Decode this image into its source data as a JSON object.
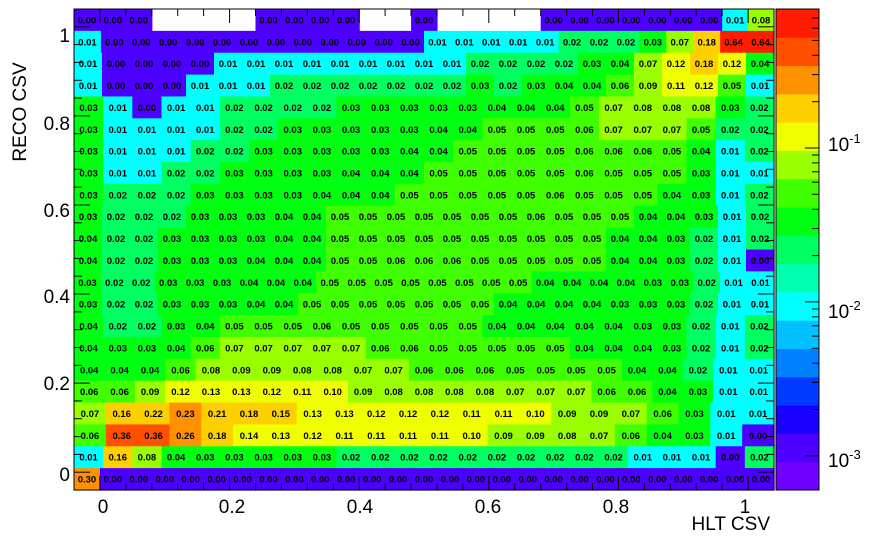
{
  "chart_data": {
    "type": "heatmap",
    "xlabel": "HLT CSV",
    "ylabel": "RECO CSV",
    "xlim": [
      -0.04,
      1.04
    ],
    "ylim": [
      -0.04,
      1.04
    ],
    "x_ticks": [
      "0",
      "0.2",
      "0.4",
      "0.6",
      "0.8",
      "1"
    ],
    "y_ticks": [
      "0",
      "0.2",
      "0.4",
      "0.6",
      "0.8",
      "1"
    ],
    "z_scale": "log",
    "z_range": [
      0.0006,
      0.8
    ],
    "colorbar_ticks": [
      "10^-1",
      "10^-2",
      "10^-3"
    ],
    "x_bin_edges": [
      -0.04,
      0.0,
      0.04,
      0.08,
      0.12,
      0.16,
      0.2,
      0.24,
      0.28,
      0.32,
      0.36,
      0.4,
      0.44,
      0.48,
      0.52,
      0.56,
      0.6,
      0.64,
      0.68,
      0.72,
      0.76,
      0.8,
      0.84,
      0.88,
      0.92,
      0.96,
      1.0,
      1.04
    ],
    "y_bin_edges": [
      -0.04,
      0.0,
      0.04,
      0.08,
      0.12,
      0.16,
      0.2,
      0.24,
      0.28,
      0.32,
      0.36,
      0.4,
      0.44,
      0.48,
      0.52,
      0.56,
      0.6,
      0.64,
      0.68,
      0.72,
      0.76,
      0.8,
      0.84,
      0.88,
      0.92,
      0.96,
      1.0,
      1.04
    ],
    "rows_top_to_bottom": [
      [
        "0.00",
        "0.00",
        "0.00",
        "",
        "",
        "",
        "",
        "0.00",
        "0.00",
        "0.00",
        "0.00",
        "",
        "",
        "0.00",
        "",
        "",
        "",
        "",
        "0.00",
        "0.00",
        "0.00",
        "0.00",
        "0.00",
        "0.00",
        "0.00",
        "0.01",
        "0.08"
      ],
      [
        "0.01",
        "0.00",
        "0.00",
        "0.00",
        "0.00",
        "0.00",
        "0.00",
        "0.00",
        "0.00",
        "0.00",
        "0.00",
        "0.00",
        "0.00",
        "0.01",
        "0.01",
        "0.01",
        "0.01",
        "0.01",
        "0.02",
        "0.02",
        "0.02",
        "0.03",
        "0.07",
        "0.18",
        "0.64",
        "0.64"
      ],
      [
        "0.01",
        "0.00",
        "0.00",
        "0.00",
        "0.00",
        "0.01",
        "0.01",
        "0.01",
        "0.01",
        "0.01",
        "0.01",
        "0.01",
        "0.01",
        "0.01",
        "0.02",
        "0.02",
        "0.02",
        "0.02",
        "0.03",
        "0.04",
        "0.07",
        "0.12",
        "0.18",
        "0.12",
        "0.04"
      ],
      [
        "0.01",
        "0.00",
        "0.00",
        "0.00",
        "0.01",
        "0.01",
        "0.01",
        "0.02",
        "0.02",
        "0.02",
        "0.02",
        "0.02",
        "0.02",
        "0.02",
        "0.03",
        "0.02",
        "0.03",
        "0.04",
        "0.04",
        "0.06",
        "0.09",
        "0.11",
        "0.12",
        "0.05",
        "0.01"
      ],
      [
        "0.03",
        "0.01",
        "0.00",
        "0.01",
        "0.01",
        "0.02",
        "0.02",
        "0.02",
        "0.02",
        "0.03",
        "0.03",
        "0.03",
        "0.03",
        "0.03",
        "0.04",
        "0.04",
        "0.04",
        "0.05",
        "0.07",
        "0.08",
        "0.08",
        "0.08",
        "0.03",
        "0.02"
      ],
      [
        "0.03",
        "0.01",
        "0.01",
        "0.01",
        "0.01",
        "0.02",
        "0.02",
        "0.03",
        "0.03",
        "0.03",
        "0.03",
        "0.03",
        "0.04",
        "0.04",
        "0.05",
        "0.05",
        "0.05",
        "0.06",
        "0.07",
        "0.07",
        "0.07",
        "0.05",
        "0.02",
        "0.02"
      ],
      [
        "0.03",
        "0.01",
        "0.01",
        "0.01",
        "0.02",
        "0.02",
        "0.03",
        "0.03",
        "0.03",
        "0.03",
        "0.03",
        "0.04",
        "0.04",
        "0.05",
        "0.05",
        "0.05",
        "0.05",
        "0.06",
        "0.06",
        "0.06",
        "0.05",
        "0.04",
        "0.01",
        "0.02"
      ],
      [
        "0.03",
        "0.01",
        "0.01",
        "0.02",
        "0.02",
        "0.03",
        "0.03",
        "0.03",
        "0.03",
        "0.04",
        "0.04",
        "0.04",
        "0.05",
        "0.05",
        "0.05",
        "0.05",
        "0.05",
        "0.06",
        "0.05",
        "0.05",
        "0.05",
        "0.03",
        "0.01",
        "0.01"
      ],
      [
        "0.03",
        "0.02",
        "0.02",
        "0.02",
        "0.03",
        "0.03",
        "0.03",
        "0.03",
        "0.04",
        "0.04",
        "0.04",
        "0.05",
        "0.05",
        "0.05",
        "0.05",
        "0.05",
        "0.06",
        "0.05",
        "0.05",
        "0.05",
        "0.04",
        "0.03",
        "0.01",
        "0.02"
      ],
      [
        "0.03",
        "0.02",
        "0.02",
        "0.02",
        "0.03",
        "0.03",
        "0.03",
        "0.04",
        "0.04",
        "0.05",
        "0.05",
        "0.05",
        "0.05",
        "0.05",
        "0.05",
        "0.05",
        "0.06",
        "0.05",
        "0.05",
        "0.05",
        "0.04",
        "0.04",
        "0.03",
        "0.01",
        "0.02"
      ],
      [
        "0.04",
        "0.02",
        "0.02",
        "0.03",
        "0.03",
        "0.03",
        "0.03",
        "0.04",
        "0.04",
        "0.05",
        "0.05",
        "0.05",
        "0.05",
        "0.05",
        "0.05",
        "0.05",
        "0.05",
        "0.05",
        "0.05",
        "0.04",
        "0.04",
        "0.03",
        "0.02",
        "0.01",
        "0.02"
      ],
      [
        "0.04",
        "0.02",
        "0.02",
        "0.03",
        "0.03",
        "0.03",
        "0.04",
        "0.04",
        "0.04",
        "0.05",
        "0.05",
        "0.06",
        "0.06",
        "0.06",
        "0.05",
        "0.05",
        "0.05",
        "0.05",
        "0.05",
        "0.04",
        "0.04",
        "0.03",
        "0.02",
        "0.01",
        "0.00"
      ],
      [
        "0.03",
        "0.02",
        "0.02",
        "0.03",
        "0.03",
        "0.03",
        "0.04",
        "0.04",
        "0.04",
        "0.05",
        "0.05",
        "0.05",
        "0.05",
        "0.05",
        "0.05",
        "0.05",
        "0.05",
        "0.04",
        "0.04",
        "0.04",
        "0.04",
        "0.03",
        "0.03",
        "0.02",
        "0.01",
        "0.01"
      ],
      [
        "0.03",
        "0.02",
        "0.02",
        "0.03",
        "0.03",
        "0.03",
        "0.04",
        "0.04",
        "0.05",
        "0.05",
        "0.05",
        "0.05",
        "0.05",
        "0.05",
        "0.05",
        "0.04",
        "0.04",
        "0.04",
        "0.04",
        "0.03",
        "0.03",
        "0.03",
        "0.02",
        "0.01",
        "0.01"
      ],
      [
        "0.04",
        "0.02",
        "0.02",
        "0.03",
        "0.04",
        "0.05",
        "0.05",
        "0.05",
        "0.06",
        "0.05",
        "0.05",
        "0.05",
        "0.05",
        "0.05",
        "0.04",
        "0.04",
        "0.04",
        "0.04",
        "0.04",
        "0.03",
        "0.03",
        "0.02",
        "0.01",
        "0.02"
      ],
      [
        "0.04",
        "0.03",
        "0.03",
        "0.04",
        "0.06",
        "0.07",
        "0.07",
        "0.07",
        "0.07",
        "0.07",
        "0.06",
        "0.06",
        "0.05",
        "0.05",
        "0.05",
        "0.05",
        "0.05",
        "0.04",
        "0.04",
        "0.04",
        "0.03",
        "0.02",
        "0.01",
        "0.02"
      ],
      [
        "0.04",
        "0.04",
        "0.04",
        "0.06",
        "0.08",
        "0.09",
        "0.09",
        "0.08",
        "0.08",
        "0.07",
        "0.07",
        "0.06",
        "0.06",
        "0.06",
        "0.05",
        "0.05",
        "0.05",
        "0.05",
        "0.04",
        "0.04",
        "0.02",
        "0.01",
        "0.01"
      ],
      [
        "0.06",
        "0.06",
        "0.09",
        "0.12",
        "0.13",
        "0.13",
        "0.12",
        "0.11",
        "0.10",
        "0.09",
        "0.08",
        "0.08",
        "0.08",
        "0.08",
        "0.07",
        "0.07",
        "0.07",
        "0.06",
        "0.06",
        "0.04",
        "0.03",
        "0.01",
        "0.01"
      ],
      [
        "0.07",
        "0.16",
        "0.22",
        "0.23",
        "0.21",
        "0.18",
        "0.15",
        "0.13",
        "0.13",
        "0.12",
        "0.12",
        "0.12",
        "0.11",
        "0.11",
        "0.10",
        "0.09",
        "0.09",
        "0.07",
        "0.06",
        "0.03",
        "0.01",
        "0.01"
      ],
      [
        "0.06",
        "0.36",
        "0.36",
        "0.26",
        "0.18",
        "0.14",
        "0.13",
        "0.12",
        "0.11",
        "0.11",
        "0.11",
        "0.11",
        "0.10",
        "0.09",
        "0.09",
        "0.08",
        "0.07",
        "0.06",
        "0.04",
        "0.03",
        "0.01",
        "0.00"
      ],
      [
        "0.01",
        "0.16",
        "0.08",
        "0.04",
        "0.03",
        "0.03",
        "0.03",
        "0.03",
        "0.03",
        "0.02",
        "0.02",
        "0.02",
        "0.02",
        "0.02",
        "0.02",
        "0.02",
        "0.02",
        "0.02",
        "0.02",
        "0.01",
        "0.01",
        "0.01",
        "0.00",
        "0.02"
      ],
      [
        "0.30",
        "0.00",
        "0.00",
        "0.00",
        "0.00",
        "0.00",
        "0.00",
        "0.00",
        "0.00",
        "0.00",
        "0.00",
        "0.00",
        "0.00",
        "0.00",
        "0.00",
        "0.00",
        "0.00",
        "0.00",
        "0.00",
        "0.00",
        "0.00",
        "0.00",
        "0.00",
        "0.00",
        "0.00",
        "0.00",
        "0.00"
      ]
    ]
  },
  "colors": {
    "palette": [
      "#6f00ff",
      "#4d00ff",
      "#1a00ff",
      "#0039ff",
      "#0080ff",
      "#00c0ff",
      "#00ffff",
      "#00ffb0",
      "#00ff60",
      "#00ff10",
      "#40ff00",
      "#9aff00",
      "#f0ff00",
      "#ffd000",
      "#ff9000",
      "#ff5000",
      "#ff1c00"
    ]
  }
}
